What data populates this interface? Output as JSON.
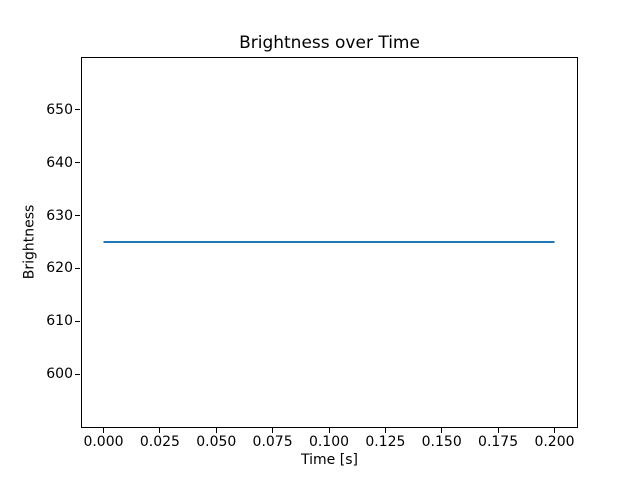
{
  "chart_data": {
    "type": "line",
    "title": "Brightness over Time",
    "xlabel": "Time [s]",
    "ylabel": "Brightness",
    "x": [
      0.0,
      0.2
    ],
    "series": [
      {
        "name": "brightness",
        "color": "#1f77b4",
        "values": [
          625,
          625
        ]
      }
    ],
    "xlim": [
      -0.01,
      0.21
    ],
    "ylim": [
      590,
      660
    ],
    "xticks": {
      "values": [
        0.0,
        0.025,
        0.05,
        0.075,
        0.1,
        0.125,
        0.15,
        0.175,
        0.2
      ],
      "labels": [
        "0.000",
        "0.025",
        "0.050",
        "0.075",
        "0.100",
        "0.125",
        "0.150",
        "0.175",
        "0.200"
      ]
    },
    "yticks": {
      "values": [
        600,
        610,
        620,
        630,
        640,
        650
      ],
      "labels": [
        "600",
        "610",
        "620",
        "630",
        "640",
        "650"
      ]
    },
    "grid": false,
    "legend_position": "none",
    "background_color": "#ffffff",
    "spine_color": "#000000"
  }
}
